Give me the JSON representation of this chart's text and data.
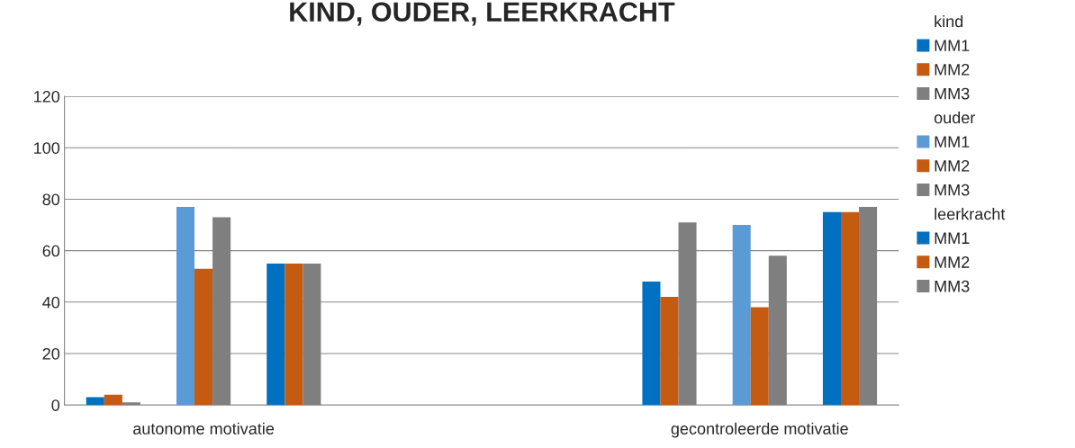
{
  "chart_data": {
    "type": "bar",
    "title": "KIND, OUDER, LEERKRACHT",
    "categories": [
      "autonome motivatie",
      null,
      "gecontroleerde motivatie"
    ],
    "series": [
      {
        "name": "MM1",
        "color": "#0070c0",
        "values": [
          3,
          null,
          48
        ]
      },
      {
        "name": "MM2",
        "color": "#c55a11",
        "values": [
          4,
          null,
          42
        ]
      },
      {
        "name": "MM3",
        "color": "#7f7f7f",
        "values": [
          1,
          null,
          71
        ]
      },
      {
        "name": "MM1",
        "color": "#5b9bd5",
        "values": [
          77,
          null,
          70
        ]
      },
      {
        "name": "MM2",
        "color": "#c55a11",
        "values": [
          53,
          null,
          38
        ]
      },
      {
        "name": "MM3",
        "color": "#7f7f7f",
        "values": [
          73,
          null,
          58
        ]
      },
      {
        "name": "MM1",
        "color": "#0070c0",
        "values": [
          55,
          null,
          75
        ]
      },
      {
        "name": "MM2",
        "color": "#c55a11",
        "values": [
          55,
          null,
          75
        ]
      },
      {
        "name": "MM3",
        "color": "#7f7f7f",
        "values": [
          55,
          null,
          77
        ]
      }
    ],
    "annotations": [
      "kind",
      "ouder",
      "leerkracht"
    ],
    "ylim": [
      0,
      120
    ],
    "yticks": [
      0,
      20,
      40,
      60,
      80,
      100,
      120
    ],
    "grid": "y",
    "legend": "right"
  }
}
